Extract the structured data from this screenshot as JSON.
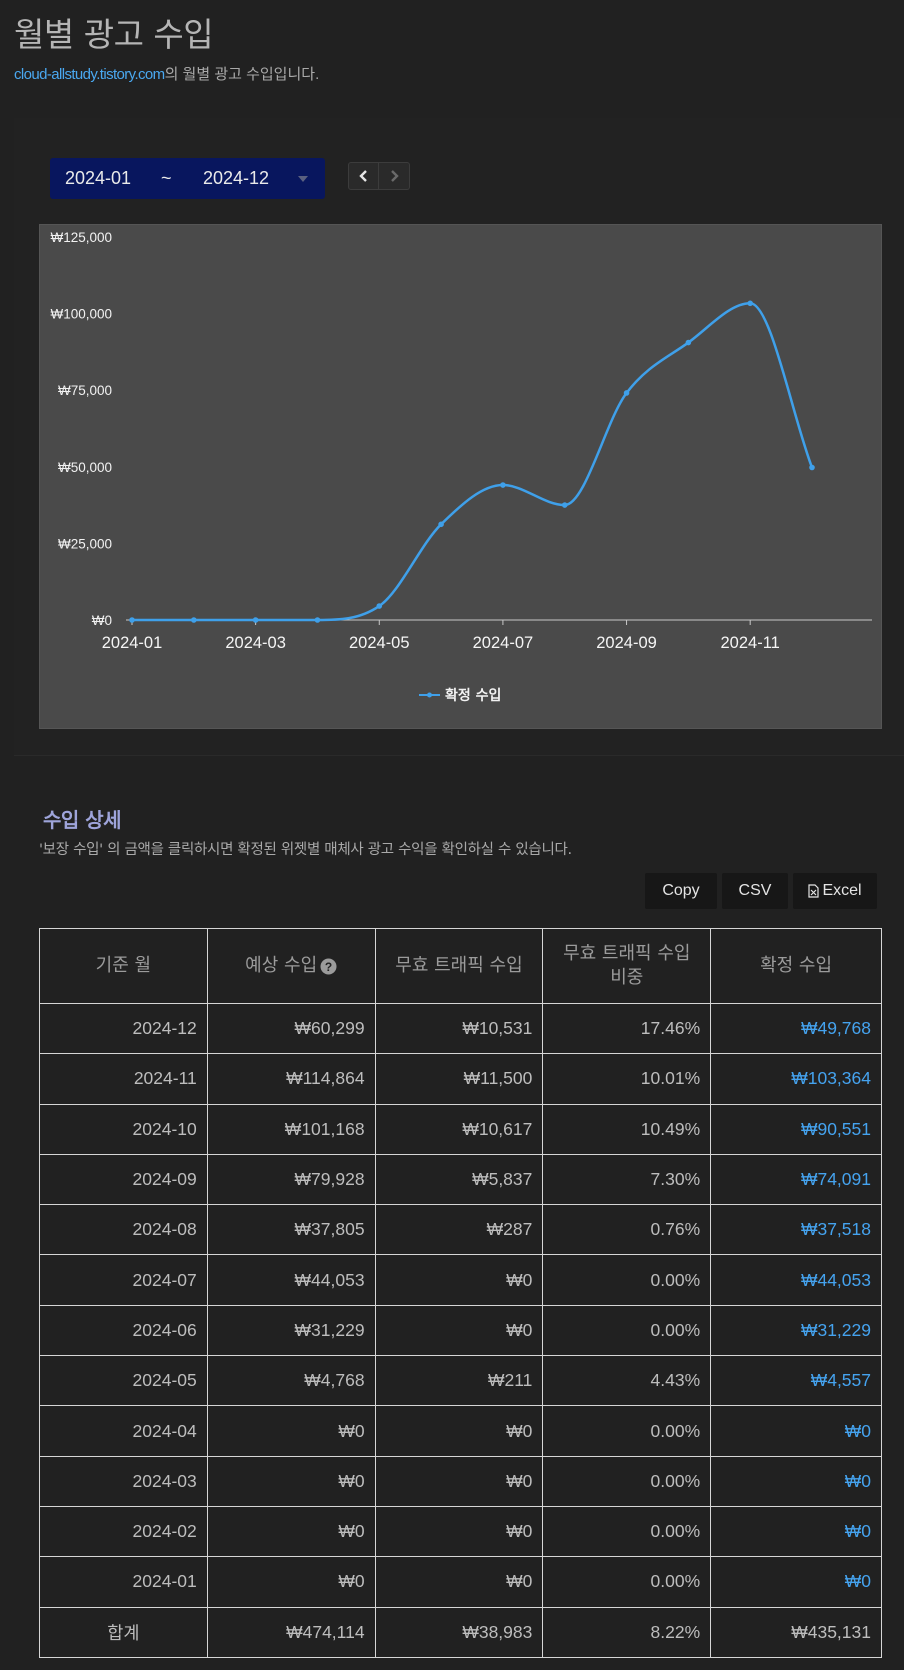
{
  "header": {
    "title": "월별 광고 수입",
    "site": "cloud-allstudy.tistory.com",
    "subtitle_suffix": "의 월별 광고 수입입니다."
  },
  "date_range": {
    "start": "2024-01",
    "separator": "~",
    "end": "2024-12"
  },
  "colors": {
    "background": "#212121",
    "accent": "#4aa8f0",
    "line": "#3fa0ea",
    "date_picker": "#08165e",
    "chart_bg": "#4a4a4a"
  },
  "icons": {
    "prev": "chevron-left-icon",
    "next": "chevron-right-icon",
    "help": "question-circle-icon",
    "excel": "file-excel-icon"
  },
  "chart_data": {
    "type": "line",
    "x": [
      "2024-01",
      "2024-02",
      "2024-03",
      "2024-04",
      "2024-05",
      "2024-06",
      "2024-07",
      "2024-08",
      "2024-09",
      "2024-10",
      "2024-11",
      "2024-12"
    ],
    "series": [
      {
        "name": "확정 수입",
        "values": [
          0,
          0,
          0,
          0,
          4557,
          31229,
          44053,
          37518,
          74091,
          90551,
          103364,
          49768
        ]
      }
    ],
    "x_tick_labels": [
      "2024-01",
      "2024-03",
      "2024-05",
      "2024-07",
      "2024-09",
      "2024-11"
    ],
    "y_tick_labels": [
      "₩0",
      "₩25,000",
      "₩50,000",
      "₩75,000",
      "₩100,000",
      "₩125,000"
    ],
    "ylim": [
      0,
      125000
    ],
    "legend": "bottom-center",
    "grid": false
  },
  "detail": {
    "title": "수입 상세",
    "description": "'보장 수입' 의 금액을 클릭하시면 확정된 위젯별 매체사 광고 수익을 확인하실 수 있습니다."
  },
  "export": {
    "copy": "Copy",
    "csv": "CSV",
    "excel": "Excel"
  },
  "table": {
    "headers": {
      "month": "기준 월",
      "expected": "예상 수입",
      "invalid": "무효 트래픽 수입",
      "invalid_ratio_line1": "무효 트래픽 수입",
      "invalid_ratio_line2": "비중",
      "confirmed": "확정 수입"
    },
    "rows": [
      {
        "month": "2024-12",
        "expected": "₩60,299",
        "invalid": "₩10,531",
        "ratio": "17.46%",
        "confirmed": "₩49,768"
      },
      {
        "month": "2024-11",
        "expected": "₩114,864",
        "invalid": "₩11,500",
        "ratio": "10.01%",
        "confirmed": "₩103,364"
      },
      {
        "month": "2024-10",
        "expected": "₩101,168",
        "invalid": "₩10,617",
        "ratio": "10.49%",
        "confirmed": "₩90,551"
      },
      {
        "month": "2024-09",
        "expected": "₩79,928",
        "invalid": "₩5,837",
        "ratio": "7.30%",
        "confirmed": "₩74,091"
      },
      {
        "month": "2024-08",
        "expected": "₩37,805",
        "invalid": "₩287",
        "ratio": "0.76%",
        "confirmed": "₩37,518"
      },
      {
        "month": "2024-07",
        "expected": "₩44,053",
        "invalid": "₩0",
        "ratio": "0.00%",
        "confirmed": "₩44,053"
      },
      {
        "month": "2024-06",
        "expected": "₩31,229",
        "invalid": "₩0",
        "ratio": "0.00%",
        "confirmed": "₩31,229"
      },
      {
        "month": "2024-05",
        "expected": "₩4,768",
        "invalid": "₩211",
        "ratio": "4.43%",
        "confirmed": "₩4,557"
      },
      {
        "month": "2024-04",
        "expected": "₩0",
        "invalid": "₩0",
        "ratio": "0.00%",
        "confirmed": "₩0"
      },
      {
        "month": "2024-03",
        "expected": "₩0",
        "invalid": "₩0",
        "ratio": "0.00%",
        "confirmed": "₩0"
      },
      {
        "month": "2024-02",
        "expected": "₩0",
        "invalid": "₩0",
        "ratio": "0.00%",
        "confirmed": "₩0"
      },
      {
        "month": "2024-01",
        "expected": "₩0",
        "invalid": "₩0",
        "ratio": "0.00%",
        "confirmed": "₩0"
      }
    ],
    "total": {
      "label": "합계",
      "expected": "₩474,114",
      "invalid": "₩38,983",
      "ratio": "8.22%",
      "confirmed": "₩435,131"
    }
  }
}
